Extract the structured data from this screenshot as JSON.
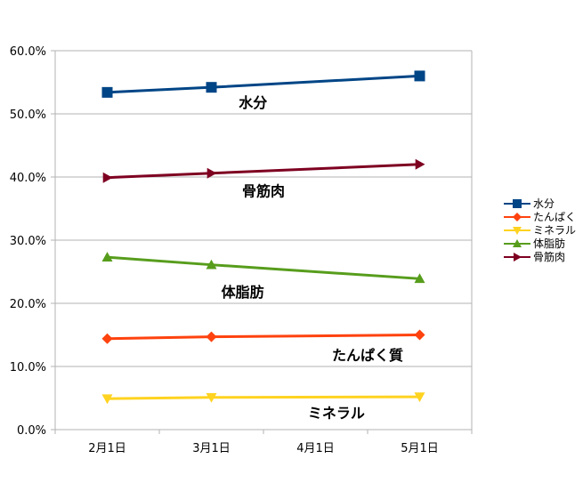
{
  "chart_data": {
    "type": "line",
    "title": "",
    "xlabel": "",
    "ylabel": "",
    "categories": [
      "2月1日",
      "3月1日",
      "4月1日",
      "5月1日"
    ],
    "x": [
      0,
      1,
      3
    ],
    "ylim": [
      0,
      60
    ],
    "y_ticks": [
      "0.0%",
      "10.0%",
      "20.0%",
      "30.0%",
      "40.0%",
      "50.0%",
      "60.0%"
    ],
    "grid": true,
    "legend_position": "right",
    "series": [
      {
        "name": "水分",
        "color": "#004586",
        "marker": "square",
        "x_index": [
          0,
          1,
          3
        ],
        "values": [
          53.4,
          54.2,
          56.0
        ]
      },
      {
        "name": "たんぱく質",
        "legend_label": "たんぱく",
        "color": "#ff420e",
        "marker": "diamond",
        "x_index": [
          0,
          1,
          3
        ],
        "values": [
          14.4,
          14.7,
          15.0
        ]
      },
      {
        "name": "ミネラル",
        "color": "#ffd320",
        "marker": "triangle-down",
        "x_index": [
          0,
          1,
          3
        ],
        "values": [
          4.9,
          5.1,
          5.2
        ]
      },
      {
        "name": "体脂肪",
        "color": "#579d1c",
        "marker": "triangle-up",
        "x_index": [
          0,
          1,
          3
        ],
        "values": [
          27.3,
          26.1,
          23.9
        ]
      },
      {
        "name": "骨筋肉",
        "color": "#7e0021",
        "marker": "triangle-right",
        "x_index": [
          0,
          1,
          3
        ],
        "values": [
          39.9,
          40.6,
          42.0
        ]
      }
    ],
    "annotations": [
      {
        "text": "水分",
        "x": 1.4,
        "y": 51.0
      },
      {
        "text": "骨筋肉",
        "x": 1.5,
        "y": 37.0
      },
      {
        "text": "体脂肪",
        "x": 1.3,
        "y": 21.0
      },
      {
        "text": "たんぱく質",
        "x": 2.5,
        "y": 11.0
      },
      {
        "text": "ミネラル",
        "x": 2.2,
        "y": 1.8
      }
    ]
  }
}
